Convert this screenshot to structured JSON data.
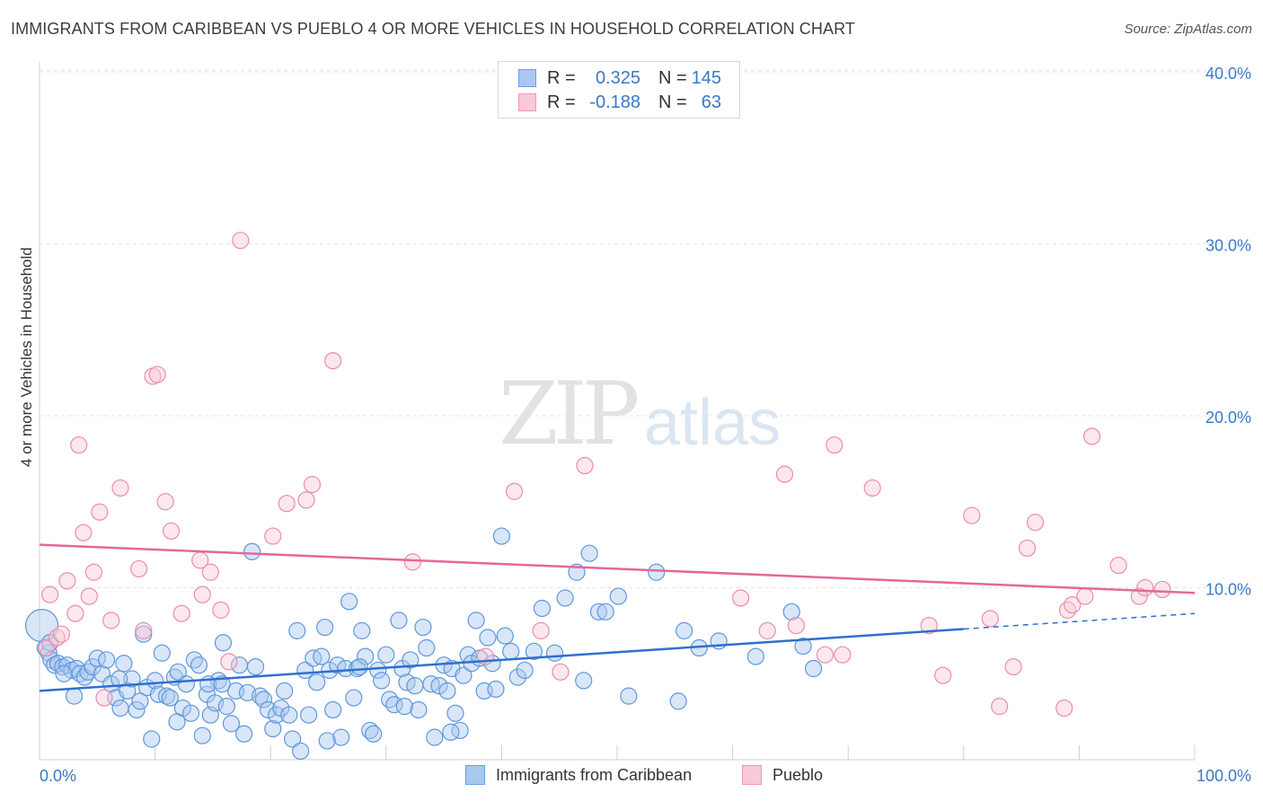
{
  "title": "IMMIGRANTS FROM CARIBBEAN VS PUEBLO 4 OR MORE VEHICLES IN HOUSEHOLD CORRELATION CHART",
  "source": "Source: ZipAtlas.com",
  "watermark": {
    "zip": "ZIP",
    "atlas": "atlas"
  },
  "colors": {
    "blue": "#3b7dd8",
    "blue_fill": "#a9c8f0",
    "pink": "#e8769b",
    "pink_fill": "#f5b9cc",
    "axis_text": "#3a78c9"
  },
  "legend_top": [
    {
      "r_label": "R =",
      "r_value": "0.325",
      "n_label": "N =",
      "n_value": "145"
    },
    {
      "r_label": "R =",
      "r_value": "-0.188",
      "n_label": "N =",
      "n_value": "63"
    }
  ],
  "chart_data": {
    "type": "scatter",
    "title": "IMMIGRANTS FROM CARIBBEAN VS PUEBLO 4 OR MORE VEHICLES IN HOUSEHOLD CORRELATION CHART",
    "xlabel": "",
    "ylabel": "4 or more Vehicles in Household",
    "xlim": [
      0,
      100
    ],
    "ylim": [
      0,
      40
    ],
    "x_tick_labels": [
      "0.0%",
      "100.0%"
    ],
    "y_tick_labels": [
      "10.0%",
      "20.0%",
      "30.0%",
      "40.0%"
    ],
    "y_ticks": [
      10,
      20,
      30,
      40
    ],
    "grid": true,
    "legend_position": "bottom",
    "series": [
      {
        "name": "Immigrants from Caribbean",
        "color": "#3b7dd8",
        "trend": {
          "x0": 0,
          "y0": 4.0,
          "x1": 80,
          "y1": 7.6,
          "dashed_to_x": 100,
          "dashed_to_y": 8.5
        },
        "points": [
          [
            0.2,
            7.8
          ],
          [
            0.5,
            6.5
          ],
          [
            0.8,
            6.2
          ],
          [
            1,
            5.8
          ],
          [
            1.3,
            5.5
          ],
          [
            1.6,
            5.6
          ],
          [
            2,
            5.4
          ],
          [
            2.4,
            5.5
          ],
          [
            2.8,
            5.2
          ],
          [
            3.2,
            5.3
          ],
          [
            3.5,
            5.0
          ],
          [
            3.9,
            4.8
          ],
          [
            4.2,
            5.1
          ],
          [
            4.6,
            5.4
          ],
          [
            5,
            5.9
          ],
          [
            5.4,
            5.0
          ],
          [
            5.8,
            5.8
          ],
          [
            6.2,
            4.4
          ],
          [
            6.6,
            3.6
          ],
          [
            7,
            3.0
          ],
          [
            7.3,
            5.6
          ],
          [
            7.6,
            4.0
          ],
          [
            8,
            4.7
          ],
          [
            8.4,
            2.9
          ],
          [
            8.7,
            3.4
          ],
          [
            9,
            7.3
          ],
          [
            9.3,
            4.2
          ],
          [
            9.7,
            1.2
          ],
          [
            10,
            4.6
          ],
          [
            10.3,
            3.8
          ],
          [
            10.6,
            6.2
          ],
          [
            11,
            3.7
          ],
          [
            11.3,
            3.6
          ],
          [
            11.7,
            4.8
          ],
          [
            12,
            5.1
          ],
          [
            12.4,
            3.0
          ],
          [
            12.7,
            4.4
          ],
          [
            13.1,
            2.7
          ],
          [
            13.4,
            5.8
          ],
          [
            13.8,
            5.5
          ],
          [
            14.1,
            1.4
          ],
          [
            14.5,
            3.8
          ],
          [
            14.8,
            2.6
          ],
          [
            15.2,
            3.3
          ],
          [
            15.5,
            4.6
          ],
          [
            15.9,
            6.8
          ],
          [
            16.2,
            3.1
          ],
          [
            16.6,
            2.1
          ],
          [
            17,
            4.0
          ],
          [
            17.3,
            5.5
          ],
          [
            17.7,
            1.5
          ],
          [
            18,
            3.9
          ],
          [
            18.4,
            12.1
          ],
          [
            18.7,
            5.4
          ],
          [
            19.1,
            3.7
          ],
          [
            19.4,
            3.5
          ],
          [
            19.8,
            2.9
          ],
          [
            20.2,
            1.8
          ],
          [
            20.5,
            2.6
          ],
          [
            20.9,
            3.0
          ],
          [
            21.2,
            4.0
          ],
          [
            21.6,
            2.6
          ],
          [
            21.9,
            1.2
          ],
          [
            22.3,
            7.5
          ],
          [
            22.6,
            0.5
          ],
          [
            23,
            5.2
          ],
          [
            23.3,
            2.6
          ],
          [
            23.7,
            5.9
          ],
          [
            24,
            4.5
          ],
          [
            24.4,
            6.0
          ],
          [
            24.7,
            7.7
          ],
          [
            25.1,
            5.2
          ],
          [
            25.4,
            2.9
          ],
          [
            25.8,
            5.5
          ],
          [
            26.1,
            1.3
          ],
          [
            26.5,
            5.3
          ],
          [
            26.8,
            9.2
          ],
          [
            27.2,
            3.6
          ],
          [
            27.5,
            5.3
          ],
          [
            27.9,
            7.5
          ],
          [
            28.2,
            6.0
          ],
          [
            28.6,
            1.7
          ],
          [
            28.9,
            1.5
          ],
          [
            29.3,
            5.2
          ],
          [
            29.6,
            4.6
          ],
          [
            30,
            6.1
          ],
          [
            30.3,
            3.5
          ],
          [
            30.7,
            3.2
          ],
          [
            31.1,
            8.1
          ],
          [
            31.4,
            5.3
          ],
          [
            31.8,
            4.5
          ],
          [
            32.1,
            5.8
          ],
          [
            32.5,
            4.3
          ],
          [
            32.8,
            2.9
          ],
          [
            33.2,
            7.7
          ],
          [
            33.5,
            6.5
          ],
          [
            33.9,
            4.4
          ],
          [
            34.2,
            1.3
          ],
          [
            34.6,
            4.3
          ],
          [
            35,
            5.5
          ],
          [
            35.3,
            4.0
          ],
          [
            35.7,
            5.3
          ],
          [
            36,
            2.7
          ],
          [
            36.4,
            1.7
          ],
          [
            36.7,
            4.9
          ],
          [
            37.1,
            6.1
          ],
          [
            37.4,
            5.6
          ],
          [
            37.8,
            8.1
          ],
          [
            38.1,
            5.9
          ],
          [
            38.5,
            4.0
          ],
          [
            38.8,
            7.1
          ],
          [
            39.2,
            5.6
          ],
          [
            39.5,
            4.1
          ],
          [
            40,
            13.0
          ],
          [
            40.3,
            7.2
          ],
          [
            40.8,
            6.3
          ],
          [
            41.4,
            4.8
          ],
          [
            42,
            5.2
          ],
          [
            42.8,
            6.3
          ],
          [
            43.5,
            8.8
          ],
          [
            44.6,
            6.2
          ],
          [
            45.5,
            9.4
          ],
          [
            46.5,
            10.9
          ],
          [
            47.1,
            4.6
          ],
          [
            47.6,
            12.0
          ],
          [
            48.4,
            8.6
          ],
          [
            49,
            8.6
          ],
          [
            50.1,
            9.5
          ],
          [
            51,
            3.7
          ],
          [
            53.4,
            10.9
          ],
          [
            55.3,
            3.4
          ],
          [
            55.8,
            7.5
          ],
          [
            57.1,
            6.5
          ],
          [
            58.8,
            6.9
          ],
          [
            62,
            6.0
          ],
          [
            65.1,
            8.6
          ],
          [
            66.1,
            6.6
          ],
          [
            67,
            5.3
          ],
          [
            0.9,
            6.8
          ],
          [
            2.1,
            5.0
          ],
          [
            3.0,
            3.7
          ],
          [
            6.9,
            4.7
          ],
          [
            11.9,
            2.2
          ],
          [
            14.6,
            4.4
          ],
          [
            15.8,
            4.4
          ],
          [
            24.9,
            1.1
          ],
          [
            27.7,
            5.4
          ],
          [
            31.6,
            3.1
          ],
          [
            35.6,
            1.6
          ]
        ]
      },
      {
        "name": "Pueblo",
        "color": "#e8769b",
        "trend": {
          "x0": 0,
          "y0": 12.5,
          "x1": 100,
          "y1": 9.7
        },
        "points": [
          [
            0.6,
            6.5
          ],
          [
            0.9,
            9.6
          ],
          [
            1.5,
            7.1
          ],
          [
            1.9,
            7.3
          ],
          [
            2.4,
            10.4
          ],
          [
            3.1,
            8.5
          ],
          [
            3.4,
            18.3
          ],
          [
            3.8,
            13.2
          ],
          [
            4.3,
            9.5
          ],
          [
            4.7,
            10.9
          ],
          [
            5.2,
            14.4
          ],
          [
            5.6,
            3.6
          ],
          [
            6.2,
            8.1
          ],
          [
            7,
            15.8
          ],
          [
            8.6,
            11.1
          ],
          [
            9,
            7.5
          ],
          [
            9.8,
            22.3
          ],
          [
            10.2,
            22.4
          ],
          [
            10.9,
            15.0
          ],
          [
            11.4,
            13.3
          ],
          [
            12.3,
            8.5
          ],
          [
            13.9,
            11.6
          ],
          [
            14.1,
            9.6
          ],
          [
            14.8,
            10.9
          ],
          [
            15.7,
            8.7
          ],
          [
            16.4,
            5.7
          ],
          [
            17.4,
            30.2
          ],
          [
            20.2,
            13.0
          ],
          [
            21.4,
            14.9
          ],
          [
            23.1,
            15.1
          ],
          [
            23.6,
            16.0
          ],
          [
            25.4,
            23.2
          ],
          [
            32.3,
            11.5
          ],
          [
            38.6,
            6.0
          ],
          [
            41.1,
            15.6
          ],
          [
            43.4,
            7.5
          ],
          [
            45.1,
            5.1
          ],
          [
            47.2,
            17.1
          ],
          [
            60.7,
            9.4
          ],
          [
            63,
            7.5
          ],
          [
            64.5,
            16.6
          ],
          [
            65.5,
            7.8
          ],
          [
            68,
            6.1
          ],
          [
            68.8,
            18.3
          ],
          [
            69.5,
            6.1
          ],
          [
            72.1,
            15.8
          ],
          [
            77,
            7.8
          ],
          [
            78.2,
            4.9
          ],
          [
            80.7,
            14.2
          ],
          [
            82.3,
            8.2
          ],
          [
            83.1,
            3.1
          ],
          [
            84.3,
            5.4
          ],
          [
            85.5,
            12.3
          ],
          [
            86.2,
            13.8
          ],
          [
            88.7,
            3.0
          ],
          [
            89,
            8.7
          ],
          [
            89.4,
            9.0
          ],
          [
            90.5,
            9.5
          ],
          [
            91.1,
            18.8
          ],
          [
            93.4,
            11.3
          ],
          [
            95.2,
            9.5
          ],
          [
            95.7,
            10.0
          ],
          [
            97.2,
            9.9
          ]
        ]
      }
    ]
  }
}
